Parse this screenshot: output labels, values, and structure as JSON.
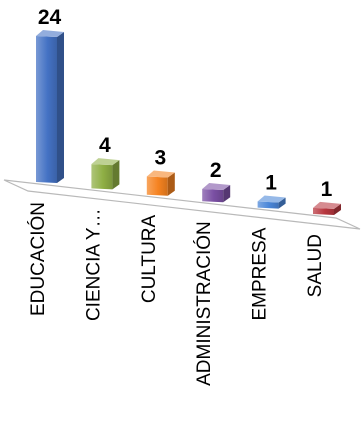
{
  "chart_data": {
    "type": "bar",
    "title": "",
    "xlabel": "",
    "ylabel": "",
    "categories": [
      "EDUCACIÓN",
      "CIENCIA Y…",
      "CULTURA",
      "ADMINISTRACIÓN",
      "EMPRESA",
      "SALUD"
    ],
    "values": [
      24,
      4,
      3,
      2,
      1,
      1
    ],
    "colors": [
      "#4472C4",
      "#8FAF45",
      "#F58220",
      "#7A4FA3",
      "#4A86D8",
      "#B8373F"
    ],
    "ylim": [
      0,
      24
    ],
    "grid": false,
    "legend": "none",
    "style": "3d-column"
  }
}
